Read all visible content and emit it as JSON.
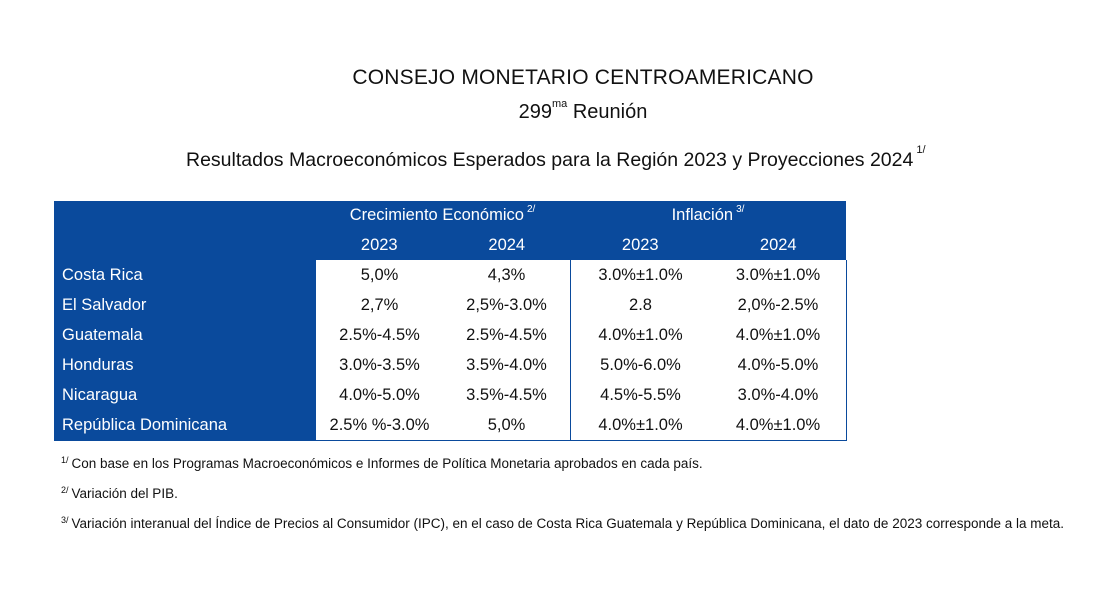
{
  "title": "CONSEJO MONETARIO CENTROAMERICANO",
  "subtitle": {
    "number": "299",
    "superscript": "ma",
    "word": "Reunión"
  },
  "heading": {
    "text": "Resultados Macroeconómicos Esperados para la Región 2023 y Proyecciones 2024",
    "footnote_mark": "1/"
  },
  "table": {
    "groups": [
      {
        "label": "Crecimiento Económico",
        "footnote_mark": "2/"
      },
      {
        "label": "Inflación",
        "footnote_mark": "3/"
      }
    ],
    "years": [
      "2023",
      "2024",
      "2023",
      "2024"
    ],
    "rows": [
      {
        "country": "Costa Rica",
        "values": [
          "5,0%",
          "4,3%",
          "3.0%±1.0%",
          "3.0%±1.0%"
        ]
      },
      {
        "country": "El Salvador",
        "values": [
          "2,7%",
          "2,5%-3.0%",
          "2.8",
          "2,0%-2.5%"
        ]
      },
      {
        "country": "Guatemala",
        "values": [
          "2.5%-4.5%",
          "2.5%-4.5%",
          "4.0%±1.0%",
          "4.0%±1.0%"
        ]
      },
      {
        "country": "Honduras",
        "values": [
          "3.0%-3.5%",
          "3.5%-4.0%",
          "5.0%-6.0%",
          "4.0%-5.0%"
        ]
      },
      {
        "country": "Nicaragua",
        "values": [
          "4.0%-5.0%",
          "3.5%-4.5%",
          "4.5%-5.5%",
          "3.0%-4.0%"
        ]
      },
      {
        "country": "República Dominicana",
        "values": [
          "2.5% %-3.0%",
          "5,0%",
          "4.0%±1.0%",
          "4.0%±1.0%"
        ]
      }
    ]
  },
  "footnotes": [
    {
      "mark": "1/",
      "text": "Con base en los Programas Macroeconómicos e Informes de Política Monetaria aprobados en cada país."
    },
    {
      "mark": "2/",
      "text": "Variación del PIB."
    },
    {
      "mark": "3/",
      "text": "Variación interanual del Índice de Precios al Consumidor (IPC), en el caso de Costa Rica Guatemala y República Dominicana, el dato de 2023 corresponde a la meta."
    }
  ],
  "colors": {
    "header_blue": "#0a4a9c",
    "text": "#111111",
    "background": "#ffffff"
  }
}
